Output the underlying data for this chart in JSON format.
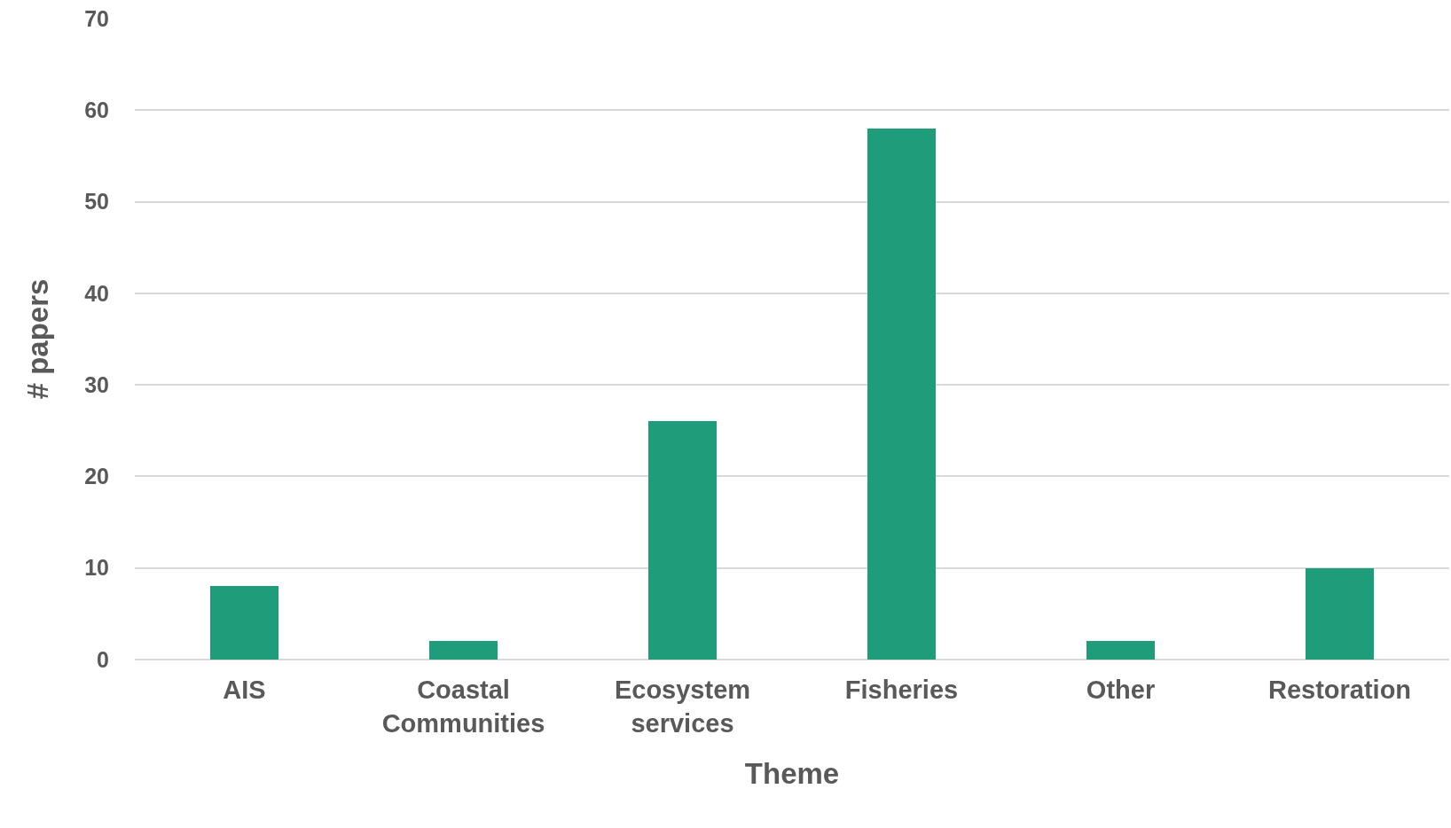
{
  "chart_data": {
    "type": "bar",
    "xlabel": "Theme",
    "ylabel": "# papers",
    "categories": [
      "AIS",
      "Coastal Communities",
      "Ecosystem services",
      "Fisheries",
      "Other",
      "Restoration"
    ],
    "values": [
      8,
      2,
      26,
      58,
      2,
      10
    ],
    "color": "#1f9c7a",
    "ylim": [
      0,
      70
    ],
    "yticks": [
      0,
      10,
      20,
      30,
      40,
      50,
      60,
      70
    ],
    "grid": "y",
    "legend": false
  }
}
